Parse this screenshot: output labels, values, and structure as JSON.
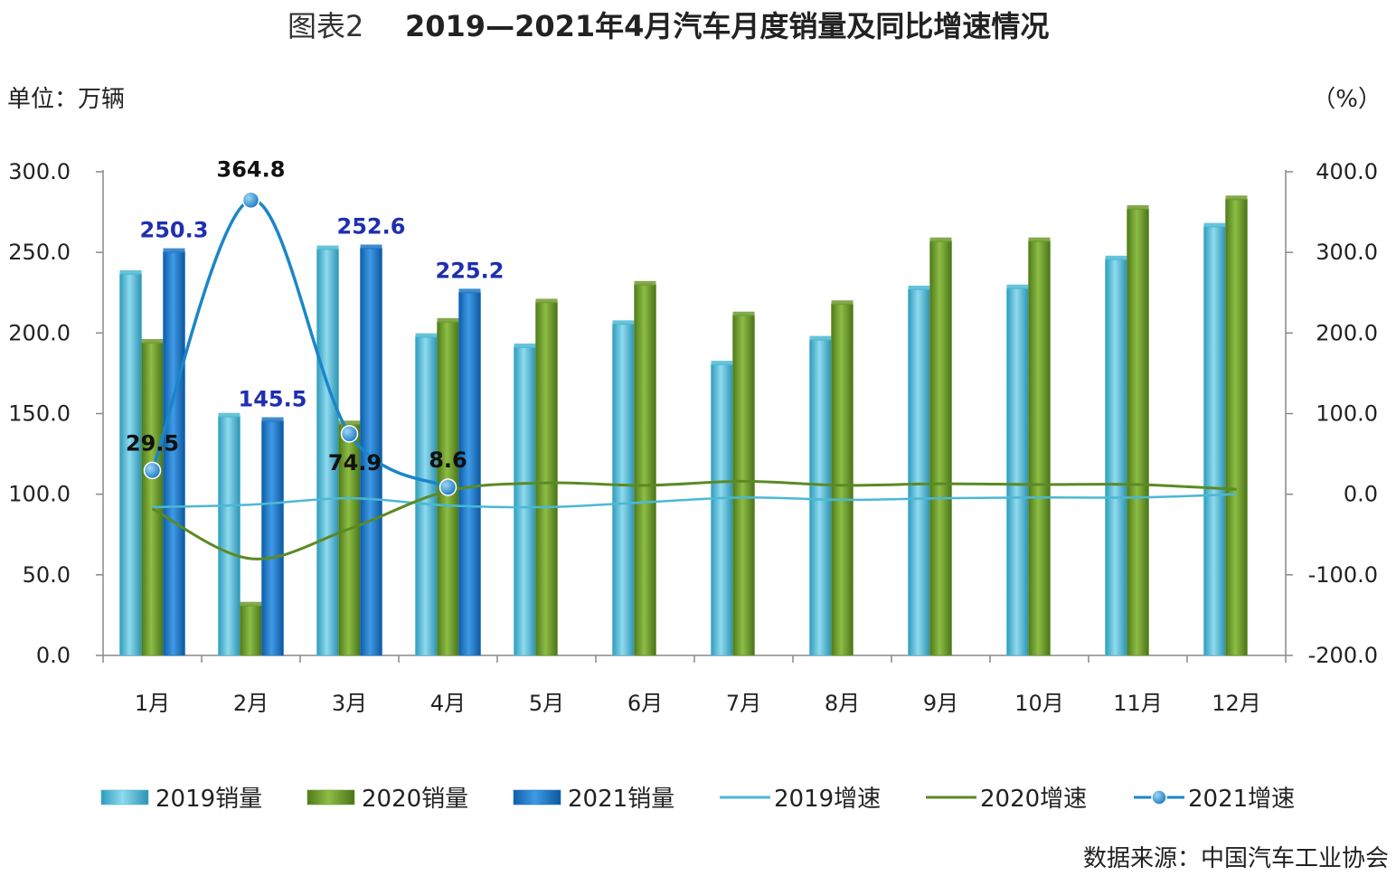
{
  "header": {
    "title_prefix": "图表2",
    "title": "2019—2021年4月汽车月度销量及同比增速情况",
    "unit_left": "单位：万辆",
    "unit_right": "（%）"
  },
  "footer": {
    "source": "数据来源：中国汽车工业协会"
  },
  "chart_data": {
    "type": "bar",
    "title": "2019—2021年4月汽车月度销量及同比增速情况",
    "categories": [
      "1月",
      "2月",
      "3月",
      "4月",
      "5月",
      "6月",
      "7月",
      "8月",
      "9月",
      "10月",
      "11月",
      "12月"
    ],
    "y_left": {
      "label": "单位：万辆",
      "range": [
        0,
        300
      ],
      "ticks": [
        "0.0",
        "50.0",
        "100.0",
        "150.0",
        "200.0",
        "250.0",
        "300.0"
      ]
    },
    "y_right": {
      "label": "（%）",
      "range": [
        -200,
        400
      ],
      "ticks": [
        "-200.0",
        "-100.0",
        "0.0",
        "100.0",
        "200.0",
        "300.0",
        "400.0"
      ]
    },
    "bar_series": [
      {
        "name": "2019销量",
        "color": "#4bb8d4",
        "values": [
          236.7,
          148.2,
          252.0,
          197.6,
          191.2,
          205.6,
          180.5,
          195.9,
          227.1,
          227.8,
          245.7,
          266.0
        ]
      },
      {
        "name": "2020销量",
        "color": "#6e9a2e",
        "values": [
          194.0,
          31.0,
          143.4,
          207.0,
          219.0,
          230.0,
          211.0,
          218.0,
          257.0,
          257.0,
          277.0,
          283.0
        ]
      },
      {
        "name": "2021销量",
        "color": "#1f78c8",
        "values": [
          250.3,
          145.5,
          252.6,
          225.2,
          null,
          null,
          null,
          null,
          null,
          null,
          null,
          null
        ]
      }
    ],
    "line_series": [
      {
        "name": "2019增速",
        "color": "#4bb8d4",
        "values": [
          -16.0,
          -13.0,
          -5.0,
          -14.0,
          -16.0,
          -10.0,
          -4.0,
          -7.0,
          -5.0,
          -4.0,
          -4.0,
          0.0
        ]
      },
      {
        "name": "2020增速",
        "color": "#5b8a24",
        "values": [
          -18.0,
          -80.0,
          -43.0,
          4.0,
          14.0,
          11.0,
          16.0,
          11.0,
          13.0,
          12.0,
          12.0,
          6.0
        ]
      },
      {
        "name": "2021增速",
        "color": "#1a86c8",
        "values": [
          29.5,
          364.8,
          74.9,
          8.6,
          null,
          null,
          null,
          null,
          null,
          null,
          null,
          null
        ]
      }
    ],
    "bar_labels": [
      {
        "series": "2021销量",
        "month": "1月",
        "text": "250.3",
        "color": "#1f2fb0"
      },
      {
        "series": "2021销量",
        "month": "2月",
        "text": "145.5",
        "color": "#1f2fb0"
      },
      {
        "series": "2021销量",
        "month": "3月",
        "text": "252.6",
        "color": "#1f2fb0"
      },
      {
        "series": "2021销量",
        "month": "4月",
        "text": "225.2",
        "color": "#1f2fb0"
      }
    ],
    "line_labels": [
      {
        "series": "2021增速",
        "month": "1月",
        "text": "29.5",
        "color": "#111111"
      },
      {
        "series": "2021增速",
        "month": "2月",
        "text": "364.8",
        "color": "#111111"
      },
      {
        "series": "2021增速",
        "month": "3月",
        "text": "74.9",
        "color": "#111111"
      },
      {
        "series": "2021增速",
        "month": "4月",
        "text": "8.6",
        "color": "#111111"
      }
    ],
    "legend": [
      "2019销量",
      "2020销量",
      "2021销量",
      "2019增速",
      "2020增速",
      "2021增速"
    ],
    "legend_position": "bottom",
    "grid": false
  }
}
